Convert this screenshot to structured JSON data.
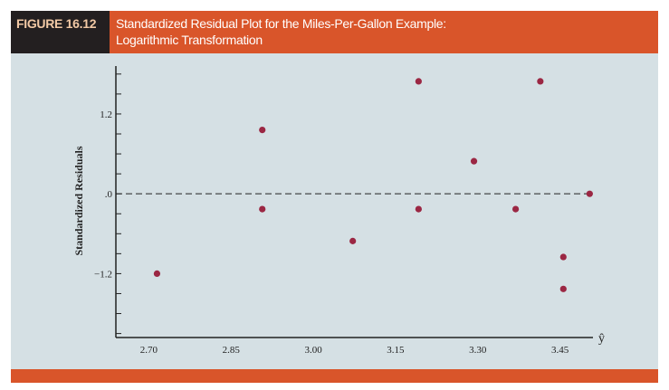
{
  "figure_label": "FIGURE 16.12",
  "chart_data": {
    "type": "scatter",
    "title": "Standardized Residual Plot for the Miles-Per-Gallon Example: Logarithmic Transformation",
    "title_lines": [
      "Standardized Residual Plot for the Miles-Per-Gallon Example:",
      "Logarithmic Transformation"
    ],
    "xlabel": "ŷ",
    "ylabel": "Standardized Residuals",
    "xlim": [
      2.64,
      3.51
    ],
    "ylim": [
      -2.16,
      1.92
    ],
    "xticks": [
      2.7,
      2.85,
      3.0,
      3.15,
      3.3,
      3.45
    ],
    "xtick_labels": [
      "2.70",
      "2.85",
      "3.00",
      "3.15",
      "3.30",
      "3.45"
    ],
    "yticks_minor_step": 0.3,
    "yticks": [
      1.2,
      0.0,
      -1.2
    ],
    "ytick_labels": [
      "1.2",
      ".0",
      "−1.2"
    ],
    "reference_line": 0.0,
    "point_color": "#9b2743",
    "points": [
      {
        "x": 2.715,
        "y": -1.2
      },
      {
        "x": 2.907,
        "y": 0.96
      },
      {
        "x": 2.907,
        "y": -0.23
      },
      {
        "x": 3.072,
        "y": -0.71
      },
      {
        "x": 3.192,
        "y": 1.69
      },
      {
        "x": 3.192,
        "y": -0.23
      },
      {
        "x": 3.293,
        "y": 0.49
      },
      {
        "x": 3.369,
        "y": -0.23
      },
      {
        "x": 3.414,
        "y": 1.69
      },
      {
        "x": 3.456,
        "y": -0.95
      },
      {
        "x": 3.456,
        "y": -1.43
      },
      {
        "x": 3.504,
        "y": 0.0
      }
    ]
  }
}
